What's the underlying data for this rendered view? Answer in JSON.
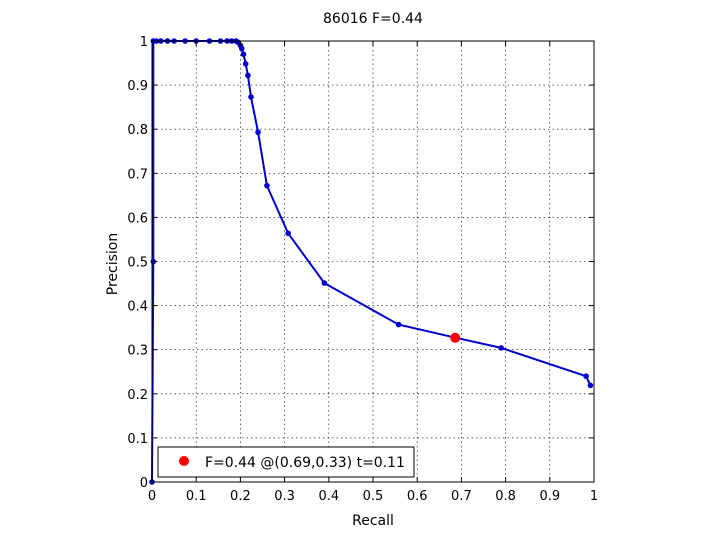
{
  "chart_data": {
    "type": "line",
    "title": "86016 F=0.44",
    "xlabel": "Recall",
    "ylabel": "Precision",
    "xlim": [
      0,
      1
    ],
    "ylim": [
      0,
      1
    ],
    "xticks": [
      0,
      0.1,
      0.2,
      0.3,
      0.4,
      0.5,
      0.6,
      0.7,
      0.8,
      0.9,
      1
    ],
    "yticks": [
      0,
      0.1,
      0.2,
      0.3,
      0.4,
      0.5,
      0.6,
      0.7,
      0.8,
      0.9,
      1
    ],
    "xtick_labels": [
      "0",
      "0.1",
      "0.2",
      "0.3",
      "0.4",
      "0.5",
      "0.6",
      "0.7",
      "0.8",
      "0.9",
      "1"
    ],
    "ytick_labels": [
      "0",
      "0.1",
      "0.2",
      "0.3",
      "0.4",
      "0.5",
      "0.6",
      "0.7",
      "0.8",
      "0.9",
      "1"
    ],
    "grid": true,
    "legend_position": "bottom-left",
    "series": [
      {
        "color": "#0000cc",
        "points": [
          [
            0.0,
            0.0
          ],
          [
            0.003,
            0.5
          ],
          [
            0.003,
            1.0
          ],
          [
            0.01,
            1.0
          ],
          [
            0.02,
            1.0
          ],
          [
            0.035,
            1.0
          ],
          [
            0.05,
            1.0
          ],
          [
            0.075,
            1.0
          ],
          [
            0.1,
            1.0
          ],
          [
            0.13,
            1.0
          ],
          [
            0.155,
            1.0
          ],
          [
            0.17,
            1.0
          ],
          [
            0.18,
            1.0
          ],
          [
            0.19,
            1.0
          ],
          [
            0.195,
            0.997
          ],
          [
            0.2,
            0.99
          ],
          [
            0.203,
            0.983
          ],
          [
            0.207,
            0.97
          ],
          [
            0.212,
            0.948
          ],
          [
            0.217,
            0.922
          ],
          [
            0.224,
            0.873
          ],
          [
            0.24,
            0.793
          ],
          [
            0.26,
            0.672
          ],
          [
            0.308,
            0.564
          ],
          [
            0.39,
            0.451
          ],
          [
            0.558,
            0.357
          ],
          [
            0.688,
            0.327
          ],
          [
            0.79,
            0.304
          ],
          [
            0.982,
            0.24
          ],
          [
            0.992,
            0.219
          ]
        ]
      }
    ],
    "best_point": {
      "recall": 0.686,
      "precision": 0.327,
      "color": "#ff0000"
    },
    "legend_text": "F=0.44 @(0.69,0.33) t=0.11"
  }
}
